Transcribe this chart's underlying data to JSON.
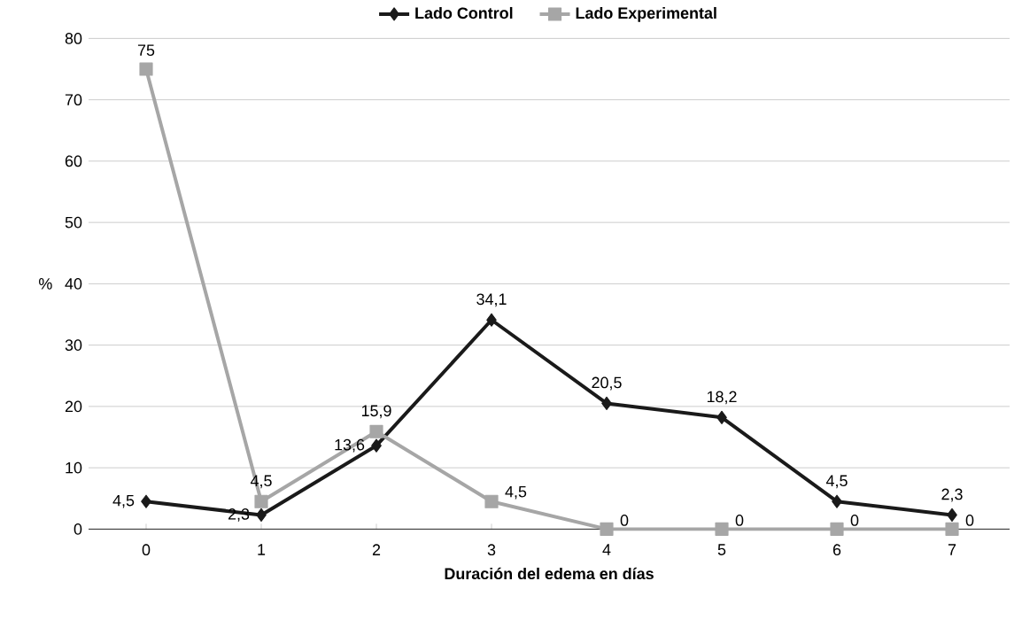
{
  "chart_data": {
    "type": "line",
    "xlabel": "Duración del edema en días",
    "ylabel": "%",
    "categories": [
      "0",
      "1",
      "2",
      "3",
      "4",
      "5",
      "6",
      "7"
    ],
    "ylim": [
      0,
      80
    ],
    "yticks": [
      0,
      10,
      20,
      30,
      40,
      50,
      60,
      70,
      80
    ],
    "grid": "y",
    "legend": "top",
    "line_style": "solid",
    "series": [
      {
        "name": "Lado Control",
        "color": "#1a1a1a",
        "marker": "diamond",
        "values": [
          4.5,
          2.3,
          13.6,
          34.1,
          20.5,
          18.2,
          4.5,
          2.3
        ],
        "value_labels": [
          "4,5",
          "2,3",
          "13,6",
          "34,1",
          "20,5",
          "18,2",
          "4,5",
          "2,3"
        ]
      },
      {
        "name": "Lado Experimental",
        "color": "#a6a6a6",
        "marker": "square",
        "values": [
          75,
          4.5,
          15.9,
          4.5,
          0,
          0,
          0,
          0
        ],
        "value_labels": [
          "75",
          "4,5",
          "15,9",
          "4,5",
          "0",
          "0",
          "0",
          "0"
        ]
      }
    ]
  }
}
